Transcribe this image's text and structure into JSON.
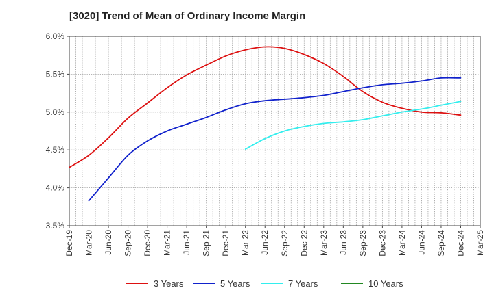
{
  "chart_data": {
    "type": "line",
    "title": "[3020]  Trend of Mean of Ordinary Income Margin",
    "xlabel": "",
    "ylabel": "",
    "x_ticks": [
      "Dec-19",
      "Mar-20",
      "Jun-20",
      "Sep-20",
      "Dec-20",
      "Mar-21",
      "Jun-21",
      "Sep-21",
      "Dec-21",
      "Mar-22",
      "Jun-22",
      "Sep-22",
      "Dec-22",
      "Mar-23",
      "Jun-23",
      "Sep-23",
      "Dec-23",
      "Mar-24",
      "Jun-24",
      "Sep-24",
      "Dec-24",
      "Mar-25"
    ],
    "y_ticks": [
      "3.5%",
      "4.0%",
      "4.5%",
      "5.0%",
      "5.5%",
      "6.0%"
    ],
    "ylim": [
      3.5,
      6.0
    ],
    "grid": true,
    "legend_position": "bottom",
    "series": [
      {
        "name": "3 Years",
        "color": "#dd1111",
        "x": [
          "Dec-19",
          "Mar-20",
          "Jun-20",
          "Sep-20",
          "Dec-20",
          "Mar-21",
          "Jun-21",
          "Sep-21",
          "Dec-21",
          "Mar-22",
          "Jun-22",
          "Sep-22",
          "Dec-22",
          "Mar-23",
          "Jun-23",
          "Sep-23",
          "Dec-23",
          "Mar-24",
          "Jun-24",
          "Sep-24",
          "Dec-24"
        ],
        "values": [
          4.27,
          4.43,
          4.66,
          4.92,
          5.12,
          5.32,
          5.49,
          5.62,
          5.74,
          5.82,
          5.86,
          5.84,
          5.76,
          5.64,
          5.47,
          5.27,
          5.13,
          5.05,
          5.0,
          4.99,
          4.96
        ]
      },
      {
        "name": "5 Years",
        "color": "#1122cc",
        "x": [
          "Mar-20",
          "Jun-20",
          "Sep-20",
          "Dec-20",
          "Mar-21",
          "Jun-21",
          "Sep-21",
          "Dec-21",
          "Mar-22",
          "Jun-22",
          "Sep-22",
          "Dec-22",
          "Mar-23",
          "Jun-23",
          "Sep-23",
          "Dec-23",
          "Mar-24",
          "Jun-24",
          "Sep-24",
          "Dec-24"
        ],
        "values": [
          3.83,
          4.13,
          4.43,
          4.62,
          4.75,
          4.84,
          4.93,
          5.03,
          5.11,
          5.15,
          5.17,
          5.19,
          5.22,
          5.27,
          5.32,
          5.36,
          5.38,
          5.41,
          5.45,
          5.45
        ]
      },
      {
        "name": "7 Years",
        "color": "#33eeee",
        "x": [
          "Mar-22",
          "Jun-22",
          "Sep-22",
          "Dec-22",
          "Mar-23",
          "Jun-23",
          "Sep-23",
          "Dec-23",
          "Mar-24",
          "Jun-24",
          "Sep-24",
          "Dec-24"
        ],
        "values": [
          4.51,
          4.65,
          4.75,
          4.81,
          4.85,
          4.87,
          4.9,
          4.95,
          5.0,
          5.04,
          5.09,
          5.14
        ]
      },
      {
        "name": "10 Years",
        "color": "#228822",
        "x": [],
        "values": []
      }
    ]
  }
}
